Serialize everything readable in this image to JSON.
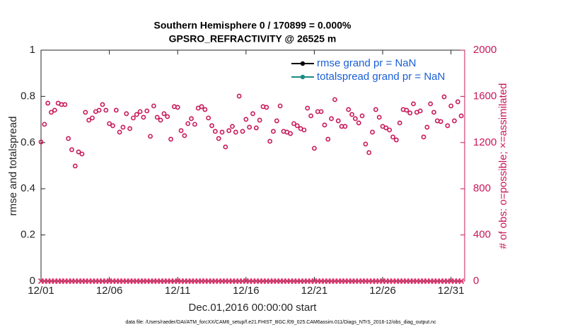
{
  "chart_data": {
    "type": "scatter",
    "title": [
      "Southern Hemisphere 0 / 170899 = 0.000%",
      "GPSRO_REFRACTIVITY @ 26525 m"
    ],
    "xlabel": "Dec.01,2016 00:00:00 start",
    "ylabel": "rmse and totalspread",
    "y2label": "# of obs: o=possible; ×=assimilated",
    "footnote": "data file: /Users/raeder/DAI/ATM_forcXX/CAM6_setup/f.e21.FHIST_BGC.f09_025.CAM6assim.011/Diags_NTrS_2016-12/obs_diag_output.nc",
    "legend": [
      {
        "name": "rmse grand pr = NaN",
        "color": "#000000"
      },
      {
        "name": "totalspread grand pr = NaN",
        "color": "#1a8a86"
      }
    ],
    "xlim": [
      0,
      31
    ],
    "xticks": [
      {
        "value": 0,
        "label": "12/01"
      },
      {
        "value": 5,
        "label": "12/06"
      },
      {
        "value": 10,
        "label": "12/11"
      },
      {
        "value": 15,
        "label": "12/16"
      },
      {
        "value": 20,
        "label": "12/21"
      },
      {
        "value": 25,
        "label": "12/26"
      },
      {
        "value": 30,
        "label": "12/31"
      }
    ],
    "ylim": [
      0,
      1
    ],
    "yticks": [
      0,
      0.2,
      0.4,
      0.6,
      0.8,
      1
    ],
    "y2lim": [
      0,
      2000
    ],
    "y2ticks": [
      0,
      400,
      800,
      1200,
      1600,
      2000
    ],
    "x": [
      0,
      0.25,
      0.5,
      0.75,
      1,
      1.25,
      1.5,
      1.75,
      2,
      2.25,
      2.5,
      2.75,
      3,
      3.25,
      3.5,
      3.75,
      4,
      4.25,
      4.5,
      4.75,
      5,
      5.25,
      5.5,
      5.75,
      6,
      6.25,
      6.5,
      6.75,
      7,
      7.25,
      7.5,
      7.75,
      8,
      8.25,
      8.5,
      8.75,
      9,
      9.25,
      9.5,
      9.75,
      10,
      10.25,
      10.5,
      10.75,
      11,
      11.25,
      11.5,
      11.75,
      12,
      12.25,
      12.5,
      12.75,
      13,
      13.25,
      13.5,
      13.75,
      14,
      14.25,
      14.5,
      14.75,
      15,
      15.25,
      15.5,
      15.75,
      16,
      16.25,
      16.5,
      16.75,
      17,
      17.25,
      17.5,
      17.75,
      18,
      18.25,
      18.5,
      18.75,
      19,
      19.25,
      19.5,
      19.75,
      20,
      20.25,
      20.5,
      20.75,
      21,
      21.25,
      21.5,
      21.75,
      22,
      22.25,
      22.5,
      22.75,
      23,
      23.25,
      23.5,
      23.75,
      24,
      24.25,
      24.5,
      24.75,
      25,
      25.25,
      25.5,
      25.75,
      26,
      26.25,
      26.5,
      26.75,
      27,
      27.25,
      27.5,
      27.75,
      28,
      28.25,
      28.5,
      28.75,
      29,
      29.25,
      29.5,
      29.75,
      30,
      30.25,
      30.5,
      30.75
    ],
    "series": [
      {
        "color": "#c8175a",
        "marker": "o",
        "axis": "y2",
        "values": [
          1205,
          1358,
          1541,
          1462,
          1480,
          1541,
          1529,
          1529,
          1235,
          1138,
          997,
          1119,
          1101,
          1462,
          1394,
          1413,
          1468,
          1480,
          1529,
          1480,
          1364,
          1346,
          1480,
          1290,
          1333,
          1450,
          1321,
          1413,
          1443,
          1468,
          1419,
          1474,
          1254,
          1517,
          1419,
          1394,
          1450,
          1425,
          1229,
          1511,
          1505,
          1303,
          1260,
          1364,
          1407,
          1358,
          1498,
          1511,
          1486,
          1413,
          1346,
          1297,
          1235,
          1290,
          1162,
          1303,
          1340,
          1290,
          1602,
          1297,
          1401,
          1333,
          1450,
          1327,
          1394,
          1511,
          1505,
          1211,
          1297,
          1388,
          1517,
          1297,
          1290,
          1278,
          1364,
          1346,
          1321,
          1309,
          1498,
          1431,
          1150,
          1468,
          1468,
          1352,
          1229,
          1407,
          1572,
          1388,
          1340,
          1340,
          1486,
          1443,
          1407,
          1370,
          1431,
          1187,
          1113,
          1290,
          1486,
          1419,
          1340,
          1327,
          1309,
          1248,
          1223,
          1370,
          1486,
          1480,
          1456,
          1535,
          1462,
          1474,
          1248,
          1333,
          1535,
          1462,
          1388,
          1382,
          1596,
          1346,
          1517,
          1388,
          1553,
          1431
        ]
      },
      {
        "color": "#e0306a",
        "marker": "x",
        "axis": "y2",
        "values": [
          0,
          0,
          0,
          0,
          0,
          0,
          0,
          0,
          0,
          0,
          0,
          0,
          0,
          0,
          0,
          0,
          0,
          0,
          0,
          0,
          0,
          0,
          0,
          0,
          0,
          0,
          0,
          0,
          0,
          0,
          0,
          0,
          0,
          0,
          0,
          0,
          0,
          0,
          0,
          0,
          0,
          0,
          0,
          0,
          0,
          0,
          0,
          0,
          0,
          0,
          0,
          0,
          0,
          0,
          0,
          0,
          0,
          0,
          0,
          0,
          0,
          0,
          0,
          0,
          0,
          0,
          0,
          0,
          0,
          0,
          0,
          0,
          0,
          0,
          0,
          0,
          0,
          0,
          0,
          0,
          0,
          0,
          0,
          0,
          0,
          0,
          0,
          0,
          0,
          0,
          0,
          0,
          0,
          0,
          0,
          0,
          0,
          0,
          0,
          0,
          0,
          0,
          0,
          0,
          0,
          0,
          0,
          0,
          0,
          0,
          0,
          0,
          0,
          0,
          0,
          0,
          0,
          0,
          0,
          0,
          0,
          0,
          0,
          0
        ]
      }
    ]
  }
}
